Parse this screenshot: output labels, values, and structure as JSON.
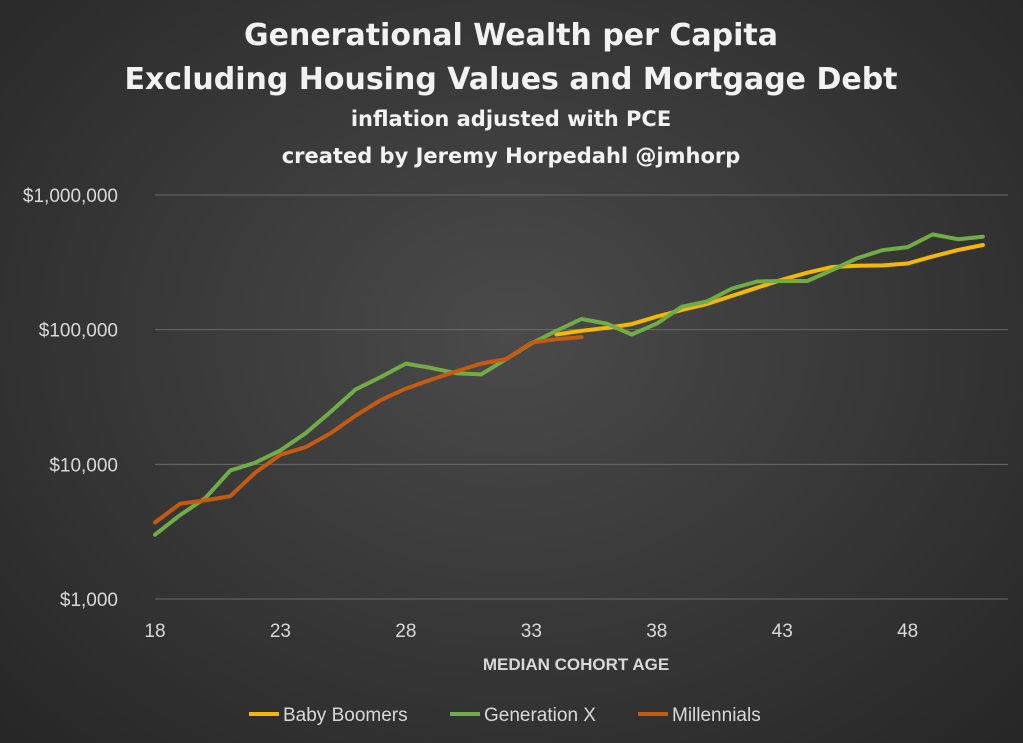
{
  "chart_data": {
    "type": "line",
    "title": "Generational Wealth per Capita",
    "title2": "Excluding Housing Values and Mortgage Debt",
    "subtitle": "inflation adjusted with PCE",
    "subtitle2": "created by Jeremy Horpedahl @jmhorp",
    "xlabel": "MEDIAN COHORT AGE",
    "ylabel": "",
    "yscale": "log",
    "xlim": [
      18,
      52
    ],
    "ylim": [
      1000,
      1000000
    ],
    "x_ticks": [
      18,
      23,
      28,
      33,
      38,
      43,
      48
    ],
    "x_tick_labels": [
      "18",
      "23",
      "28",
      "33",
      "38",
      "43",
      "48"
    ],
    "y_ticks": [
      1000,
      10000,
      100000,
      1000000
    ],
    "y_tick_labels": [
      "$1,000",
      "$10,000",
      "$100,000",
      "$1,000,000"
    ],
    "grid": true,
    "legend_position": "bottom",
    "series": [
      {
        "name": "Baby Boomers",
        "color": "#f5b800",
        "x": [
          34,
          35,
          36,
          37,
          38,
          39,
          40,
          41,
          42,
          43,
          44,
          45,
          46,
          47,
          48,
          49,
          50,
          51
        ],
        "y": [
          92000,
          98000,
          103000,
          110000,
          125000,
          140000,
          155000,
          178000,
          205000,
          235000,
          265000,
          292000,
          298000,
          300000,
          310000,
          350000,
          390000,
          425000
        ]
      },
      {
        "name": "Generation X",
        "color": "#70ad47",
        "x": [
          18,
          19,
          20,
          21,
          22,
          23,
          24,
          25,
          26,
          27,
          28,
          29,
          30,
          31,
          32,
          33,
          34,
          35,
          36,
          37,
          38,
          39,
          40,
          41,
          42,
          43,
          44,
          45,
          46,
          47,
          48,
          49,
          50,
          51
        ],
        "y": [
          3000,
          4200,
          5600,
          9000,
          10300,
          12700,
          17000,
          24500,
          36000,
          44500,
          56000,
          52000,
          47500,
          46500,
          60500,
          79000,
          98000,
          120000,
          111000,
          92000,
          111000,
          148000,
          162000,
          202000,
          228000,
          230000,
          230000,
          278000,
          340000,
          390000,
          410000,
          510000,
          470000,
          490000
        ]
      },
      {
        "name": "Millennials",
        "color": "#c55a11",
        "x": [
          18,
          19,
          20,
          21,
          22,
          23,
          24,
          25,
          26,
          27,
          28,
          29,
          30,
          31,
          32,
          33,
          34,
          35
        ],
        "y": [
          3700,
          5100,
          5400,
          5800,
          8700,
          11800,
          13400,
          17000,
          23000,
          30000,
          36500,
          42500,
          49000,
          56000,
          60500,
          80000,
          85000,
          88000
        ]
      }
    ]
  }
}
